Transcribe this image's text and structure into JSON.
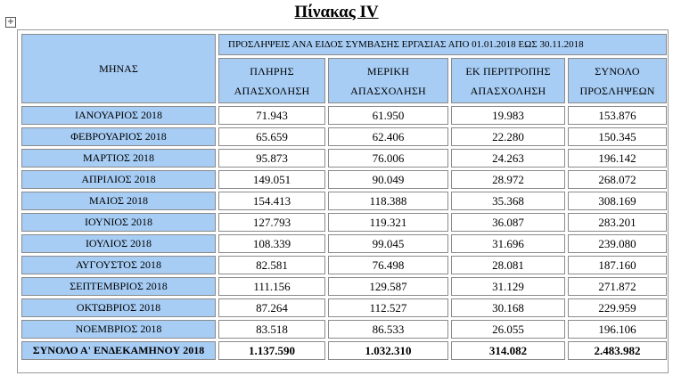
{
  "title": "Πίνακας IV",
  "table": {
    "month_header": "ΜΗΝΑΣ",
    "span_header": "ΠΡΟΣΛΗΨΕΙΣ ΑΝΑ ΕΙΔΟΣ  ΣΥΜΒΑΣΗΣ ΕΡΓΑΣΙΑΣ ΑΠΟ  01.01.2018  ΕΩΣ  30.11.2018",
    "columns": [
      {
        "line1": "ΠΛΗΡΗΣ",
        "line2": "ΑΠΑΣΧΟΛΗΣΗ"
      },
      {
        "line1": "ΜΕΡΙΚΗ",
        "line2": "ΑΠΑΣΧΟΛΗΣΗ"
      },
      {
        "line1": "ΕΚ ΠΕΡΙΤΡΟΠΗΣ",
        "line2": "ΑΠΑΣΧΟΛΗΣΗ"
      },
      {
        "line1": "ΣΥΝΟΛΟ",
        "line2": "ΠΡΟΣΛΗΨΕΩΝ"
      }
    ],
    "rows": [
      {
        "month": "ΙΑΝΟΥΑΡΙΟΣ 2018",
        "full": "71.943",
        "part": "61.950",
        "rotation": "19.983",
        "total": "153.876"
      },
      {
        "month": "ΦΕΒΡΟΥΑΡΙΟΣ 2018",
        "full": "65.659",
        "part": "62.406",
        "rotation": "22.280",
        "total": "150.345"
      },
      {
        "month": "ΜΑΡΤΙΟΣ 2018",
        "full": "95.873",
        "part": "76.006",
        "rotation": "24.263",
        "total": "196.142"
      },
      {
        "month": "ΑΠΡΙΛΙΟΣ 2018",
        "full": "149.051",
        "part": "90.049",
        "rotation": "28.972",
        "total": "268.072"
      },
      {
        "month": "ΜΑΙΟΣ 2018",
        "full": "154.413",
        "part": "118.388",
        "rotation": "35.368",
        "total": "308.169"
      },
      {
        "month": "ΙΟΥΝΙΟΣ 2018",
        "full": "127.793",
        "part": "119.321",
        "rotation": "36.087",
        "total": "283.201"
      },
      {
        "month": "ΙΟΥΛΙΟΣ 2018",
        "full": "108.339",
        "part": "99.045",
        "rotation": "31.696",
        "total": "239.080"
      },
      {
        "month": "ΑΥΓΟΥΣΤΟΣ 2018",
        "full": "82.581",
        "part": "76.498",
        "rotation": "28.081",
        "total": "187.160"
      },
      {
        "month": "ΣΕΠΤΕΜΒΡΙΟΣ 2018",
        "full": "111.156",
        "part": "129.587",
        "rotation": "31.129",
        "total": "271.872"
      },
      {
        "month": "ΟΚΤΩΒΡΙΟΣ 2018",
        "full": "87.264",
        "part": "112.527",
        "rotation": "30.168",
        "total": "229.959"
      },
      {
        "month": "ΝΟΕΜΒΡΙΟΣ 2018",
        "full": "83.518",
        "part": "86.533",
        "rotation": "26.055",
        "total": "196.106"
      }
    ],
    "total_row": {
      "month": "ΣΥΝΟΛΟ Α' ΕΝΔΕΚΑΜΗΝΟΥ 2018",
      "full": "1.137.590",
      "part": "1.032.310",
      "rotation": "314.082",
      "total": "2.483.982"
    }
  },
  "colors": {
    "header_bg": "#a7cdf5",
    "cell_bg": "#ffffff",
    "border": "#8a8a8a"
  },
  "icons": {
    "table_anchor": "move-handle-icon"
  }
}
